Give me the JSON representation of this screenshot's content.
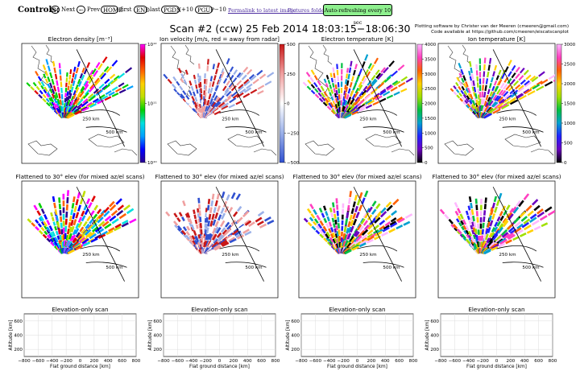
{
  "toolbar": {
    "controls_label": "Controls:",
    "next_key": "→",
    "next_label": "Next",
    "prev_key": "←",
    "prev_label": "Prev",
    "home_key": "HOME",
    "home_label": "first",
    "end_key": "END",
    "end_label": "last",
    "pgdn_key": "PGDN",
    "pgdn_label": "+10",
    "pgup_key": "PGUP",
    "pgup_label": "−10",
    "permalink": "Permalink to latest image",
    "pictures_folder": "Pictures folder",
    "auto_refresh": "Auto-refreshing every 10 sec"
  },
  "header": {
    "title": "Scan #2 (ccw)    25 Feb 2014 18:03:15−18:06:30",
    "credit_line1": "Plotting software by Christer van der Meeren (cmeeren@gmail.com)",
    "credit_line2": "Code available at https://github.com/cmeeren/eiscatscanplot"
  },
  "row1": {
    "titles": [
      "Electron density [m⁻³]",
      "Ion velocity [m/s, red = away from radar]",
      "Electron temperature [K]",
      "Ion temperature [K]"
    ],
    "range_labels": [
      "250 km",
      "500 km"
    ],
    "colorbars": [
      {
        "ticks": [
          "10¹²",
          "10¹¹",
          "10¹⁰"
        ],
        "tick_values": [
          12,
          11,
          10
        ],
        "range": [
          10,
          12
        ]
      },
      {
        "ticks": [
          "500",
          "250",
          "0",
          "−250",
          "−500"
        ],
        "tick_values": [
          500,
          250,
          0,
          -250,
          -500
        ],
        "range": [
          -500,
          500
        ]
      },
      {
        "ticks": [
          "4000",
          "3500",
          "3000",
          "2500",
          "2000",
          "1500",
          "1000",
          "500",
          "0"
        ],
        "tick_values": [
          4000,
          3500,
          3000,
          2500,
          2000,
          1500,
          1000,
          500,
          0
        ],
        "range": [
          0,
          4000
        ]
      },
      {
        "ticks": [
          "3000",
          "2500",
          "2000",
          "1500",
          "1000",
          "500",
          "0"
        ],
        "tick_values": [
          3000,
          2500,
          2000,
          1500,
          1000,
          500,
          0
        ],
        "range": [
          0,
          3000
        ]
      }
    ],
    "colors": {
      "jet": [
        "#2b0090",
        "#0000ff",
        "#00a0ff",
        "#00e0e0",
        "#00d000",
        "#c0e000",
        "#ffd000",
        "#ff6000",
        "#e00000",
        "#ff00ff"
      ],
      "diverging": [
        "#3050d0",
        "#9ab0e8",
        "#ffffff",
        "#f0a0a0",
        "#c81818"
      ],
      "hot": [
        "#000000",
        "#6a00c0",
        "#2020ff",
        "#00a0d0",
        "#00c040",
        "#a0e000",
        "#ffd000",
        "#ff6000",
        "#ff40c0",
        "#ffb8ff"
      ]
    }
  },
  "row2": {
    "titles": [
      "Flattened to 30° elev (for mixed az/el scans)",
      "Flattened to 30° elev (for mixed az/el scans)",
      "Flattened to 30° elev (for mixed az/el scans)",
      "Flattened to 30° elev (for mixed az/el scans)"
    ],
    "range_labels": [
      "250 km",
      "500 km"
    ]
  },
  "row3": {
    "title": "Elevation-only scan",
    "ylabel": "Altitude [km]",
    "xlabel": "Flat ground distance [km]",
    "yticks": [
      "600",
      "400",
      "200"
    ],
    "xticks": [
      "−800",
      "−600",
      "−400",
      "−200",
      "0",
      "200",
      "400",
      "600",
      "800"
    ],
    "xlim": [
      -800,
      800
    ],
    "ylim": [
      100,
      700
    ]
  }
}
